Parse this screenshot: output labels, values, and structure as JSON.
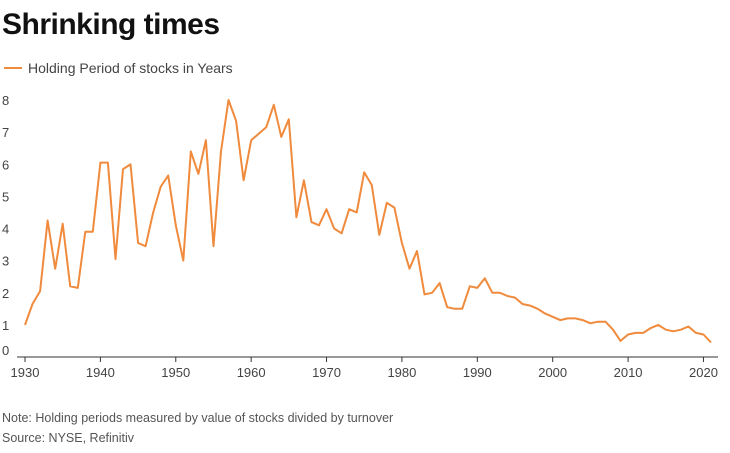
{
  "header": {
    "title": "Shrinking times"
  },
  "footer": {
    "note": "Note: Holding periods measured by value of stocks divided by turnover",
    "source": "Source: NYSE, Refinitiv"
  },
  "colors": {
    "series": "#f08a3c",
    "axis": "#333333",
    "text": "#444444"
  },
  "chart_data": {
    "type": "line",
    "title": "Shrinking times",
    "xlabel": "",
    "ylabel": "",
    "xlim": [
      1930,
      2021
    ],
    "ylim": [
      0,
      8
    ],
    "grid": false,
    "legend_position": "top-left",
    "x_ticks": [
      1930,
      1940,
      1950,
      1960,
      1970,
      1980,
      1990,
      2000,
      2010,
      2020
    ],
    "y_ticks": [
      0,
      1,
      2,
      3,
      4,
      5,
      6,
      7,
      8
    ],
    "series": [
      {
        "name": "Holding Period of stocks in Years",
        "x": [
          1930,
          1931,
          1932,
          1933,
          1934,
          1935,
          1936,
          1937,
          1938,
          1939,
          1940,
          1941,
          1942,
          1943,
          1944,
          1945,
          1946,
          1947,
          1948,
          1949,
          1950,
          1951,
          1952,
          1953,
          1954,
          1955,
          1956,
          1957,
          1958,
          1959,
          1960,
          1961,
          1962,
          1963,
          1964,
          1965,
          1966,
          1967,
          1968,
          1969,
          1970,
          1971,
          1972,
          1973,
          1974,
          1975,
          1976,
          1977,
          1978,
          1979,
          1980,
          1981,
          1982,
          1983,
          1984,
          1985,
          1986,
          1987,
          1988,
          1989,
          1990,
          1991,
          1992,
          1993,
          1994,
          1995,
          1996,
          1997,
          1998,
          1999,
          2000,
          2001,
          2002,
          2003,
          2004,
          2005,
          2006,
          2007,
          2008,
          2009,
          2010,
          2011,
          2012,
          2013,
          2014,
          2015,
          2016,
          2017,
          2018,
          2019,
          2020,
          2021
        ],
        "values": [
          1.0,
          1.65,
          2.05,
          4.25,
          2.75,
          4.15,
          2.2,
          2.15,
          3.9,
          3.9,
          6.05,
          6.05,
          3.05,
          5.85,
          6.0,
          3.55,
          3.45,
          4.5,
          5.3,
          5.65,
          4.1,
          3.0,
          6.4,
          5.7,
          6.75,
          3.45,
          6.4,
          8.0,
          7.35,
          5.5,
          6.75,
          6.95,
          7.15,
          7.85,
          6.85,
          7.4,
          4.35,
          5.5,
          4.2,
          4.1,
          4.6,
          4.0,
          3.85,
          4.6,
          4.5,
          5.75,
          5.35,
          3.8,
          4.8,
          4.65,
          3.55,
          2.75,
          3.3,
          1.95,
          2.0,
          2.3,
          1.55,
          1.5,
          1.5,
          2.2,
          2.15,
          2.45,
          2.0,
          2.0,
          1.9,
          1.85,
          1.65,
          1.6,
          1.5,
          1.35,
          1.25,
          1.15,
          1.2,
          1.2,
          1.15,
          1.05,
          1.1,
          1.1,
          0.85,
          0.5,
          0.7,
          0.75,
          0.75,
          0.9,
          1.0,
          0.85,
          0.8,
          0.85,
          0.95,
          0.75,
          0.7,
          0.45
        ]
      }
    ]
  }
}
